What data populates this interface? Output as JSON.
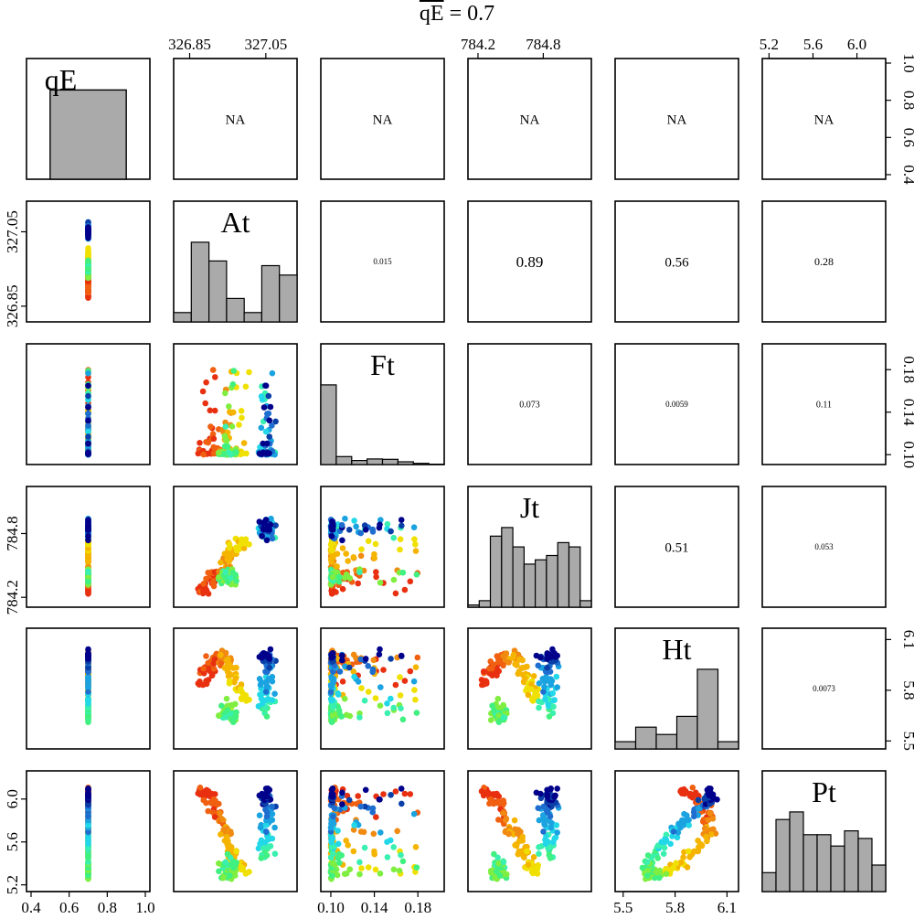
{
  "title": {
    "var": "qE",
    "text": " = 0.7"
  },
  "colors": {
    "frame": "#000000",
    "bar_fill": "#aaaaaa",
    "palette": [
      "#00008b",
      "#0a3fa8",
      "#1e6ed0",
      "#1aa3e0",
      "#22d8e8",
      "#3af0b0",
      "#40f080",
      "#80ee40",
      "#c8f020",
      "#f0e000",
      "#f4b400",
      "#f08a10",
      "#f06010",
      "#e83010"
    ]
  },
  "chart_data": {
    "type": "scatter",
    "description_variables": [
      "qE",
      "At",
      "Ft",
      "Jt",
      "Ht",
      "Pt"
    ],
    "diag_labels": [
      "qE",
      "At",
      "Ft",
      "Jt",
      "Ht",
      "Pt"
    ],
    "na_text": "NA",
    "ranges": {
      "qE": [
        0.4,
        1.0
      ],
      "At": [
        326.82,
        327.12
      ],
      "Ft": [
        0.095,
        0.2
      ],
      "Jt": [
        784.15,
        785.2
      ],
      "Ht": [
        5.48,
        6.14
      ],
      "Pt": [
        5.18,
        6.22
      ]
    },
    "ticks": {
      "qE": [
        "0.4",
        "0.6",
        "0.8",
        "1.0"
      ],
      "At": [
        "326.85",
        "327.05"
      ],
      "Ft": [
        "0.10",
        "0.14",
        "0.18"
      ],
      "Jt": [
        "784.2",
        "784.8"
      ],
      "Ht": [
        "5.5",
        "5.8",
        "6.1"
      ],
      "Pt": [
        "5.2",
        "5.6",
        "6.0"
      ]
    },
    "correlations": [
      {
        "row": 0,
        "col": 1,
        "text": "NA",
        "size": 15
      },
      {
        "row": 0,
        "col": 2,
        "text": "NA",
        "size": 15
      },
      {
        "row": 0,
        "col": 3,
        "text": "NA",
        "size": 15
      },
      {
        "row": 0,
        "col": 4,
        "text": "NA",
        "size": 15
      },
      {
        "row": 0,
        "col": 5,
        "text": "NA",
        "size": 15
      },
      {
        "row": 1,
        "col": 2,
        "text": "0.015",
        "size": 9
      },
      {
        "row": 1,
        "col": 3,
        "text": "0.89",
        "size": 17
      },
      {
        "row": 1,
        "col": 4,
        "text": "0.56",
        "size": 15
      },
      {
        "row": 1,
        "col": 5,
        "text": "0.28",
        "size": 12
      },
      {
        "row": 2,
        "col": 3,
        "text": "0.073",
        "size": 10
      },
      {
        "row": 2,
        "col": 4,
        "text": "0.0059",
        "size": 9
      },
      {
        "row": 2,
        "col": 5,
        "text": "0.11",
        "size": 10
      },
      {
        "row": 3,
        "col": 4,
        "text": "0.51",
        "size": 15
      },
      {
        "row": 3,
        "col": 5,
        "text": "0.053",
        "size": 9
      },
      {
        "row": 4,
        "col": 5,
        "text": "0.0073",
        "size": 9
      }
    ],
    "histograms": {
      "qE": [
        {
          "from": 0.5,
          "to": 0.9,
          "count": 0.8
        }
      ],
      "qE_ylim": [
        0,
        1.0
      ],
      "At": [
        2,
        17,
        13,
        5,
        2,
        12,
        10
      ],
      "Ft": [
        20,
        2,
        1,
        1.4,
        1.3,
        0.7,
        0.3,
        0.1
      ],
      "Jt": [
        1,
        3,
        33,
        37,
        28,
        20,
        22,
        24,
        30,
        28,
        3
      ],
      "Ht": [
        2,
        6,
        4,
        9,
        22,
        2
      ],
      "Pt": [
        5,
        19,
        21,
        15,
        15,
        12,
        16,
        14,
        7
      ]
    },
    "points": [
      {
        "qE": 0.7,
        "At": 326.97,
        "Ft": 0.1,
        "Jt": 784.4,
        "Ht": 5.86,
        "Pt": 5.55,
        "c": 8
      },
      {
        "qE": 0.7,
        "At": 327.08,
        "Ft": 0.12,
        "Jt": 784.88,
        "Ht": 5.9,
        "Pt": 5.88,
        "c": 1
      }
    ],
    "points_note": "estimated path"
  }
}
